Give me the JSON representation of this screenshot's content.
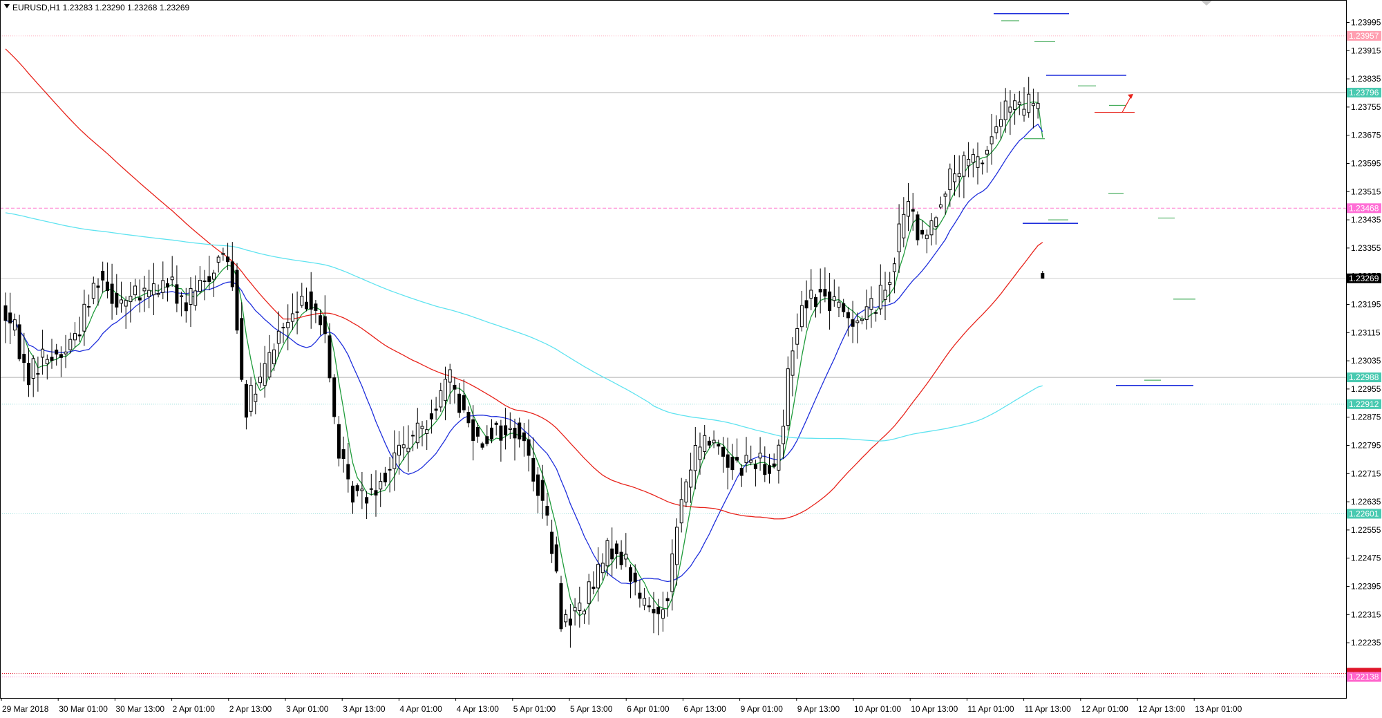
{
  "chart_data": {
    "type": "candlestick",
    "symbol": "EURUSD,H1",
    "header": "EURUSD,H1  1.23283 1.23290 1.23268 1.23269",
    "ohlc_last": {
      "open": 1.23283,
      "high": 1.2329,
      "low": 1.23268,
      "close": 1.23269
    },
    "y_ticks": [
      "1.23995",
      "1.23915",
      "1.23835",
      "1.23755",
      "1.23675",
      "1.23595",
      "1.23515",
      "1.23435",
      "1.23355",
      "1.23275",
      "1.23195",
      "1.23115",
      "1.23035",
      "1.22955",
      "1.22875",
      "1.22795",
      "1.22715",
      "1.22635",
      "1.22555",
      "1.22475",
      "1.22395",
      "1.22315",
      "1.22235",
      "1.22155"
    ],
    "ylim": [
      1.2211,
      1.2405
    ],
    "x_ticks": [
      "29 Mar 2018",
      "30 Mar 01:00",
      "30 Mar 13:00",
      "2 Apr 01:00",
      "2 Apr 13:00",
      "3 Apr 01:00",
      "3 Apr 13:00",
      "4 Apr 01:00",
      "4 Apr 13:00",
      "5 Apr 01:00",
      "5 Apr 13:00",
      "6 Apr 01:00",
      "6 Apr 13:00",
      "9 Apr 01:00",
      "9 Apr 13:00",
      "10 Apr 01:00",
      "10 Apr 13:00",
      "11 Apr 01:00",
      "11 Apr 13:00",
      "12 Apr 01:00",
      "12 Apr 13:00",
      "13 Apr 01:00"
    ],
    "grid": false,
    "price_tags": [
      {
        "label": "1.23957",
        "price": 1.23957,
        "color": "#ff9fb0"
      },
      {
        "label": "1.23796",
        "price": 1.23796,
        "color": "#48c9b0"
      },
      {
        "label": "1.23468",
        "price": 1.23468,
        "color": "#ff6fd6"
      },
      {
        "label": "1.23269",
        "price": 1.23269,
        "color": "#000000"
      },
      {
        "label": "1.22988",
        "price": 1.22988,
        "color": "#48c9b0"
      },
      {
        "label": "1.22912",
        "price": 1.22912,
        "color": "#48c9b0"
      },
      {
        "label": "1.22601",
        "price": 1.22601,
        "color": "#48c9b0"
      },
      {
        "label": "1.22138",
        "price": 1.22138,
        "color": "#ff66cc"
      }
    ],
    "extra_marker": {
      "price": 1.22148,
      "color": "#e0162b"
    },
    "level_lines": [
      {
        "price": 1.23957,
        "color": "#ffb3c1",
        "style": "dotted"
      },
      {
        "price": 1.23796,
        "color": "#b0b0b0",
        "style": "solid"
      },
      {
        "price": 1.23468,
        "color": "#ff7fd0",
        "style": "dashed"
      },
      {
        "price": 1.23269,
        "color": "#cfcfcf",
        "style": "solid"
      },
      {
        "price": 1.22988,
        "color": "#b0b0b0",
        "style": "solid"
      },
      {
        "price": 1.22912,
        "color": "#9ce0dc",
        "style": "dotted"
      },
      {
        "price": 1.22601,
        "color": "#9ce0dc",
        "style": "dotted"
      },
      {
        "price": 1.22138,
        "color": "#ff7fd0",
        "style": "dotted"
      },
      {
        "price": 1.22148,
        "color": "#e0162b",
        "style": "dotted"
      }
    ],
    "series": [
      {
        "color": "#1f9b3a"
      },
      {
        "color": "#1f2fdc"
      },
      {
        "color": "#e8231b"
      },
      {
        "color": "#5fe3f0"
      }
    ],
    "colors": {
      "bull": "#ffffff",
      "bear": "#000000",
      "wick": "#000000",
      "background": "#ffffff",
      "axis": "#000000"
    }
  }
}
